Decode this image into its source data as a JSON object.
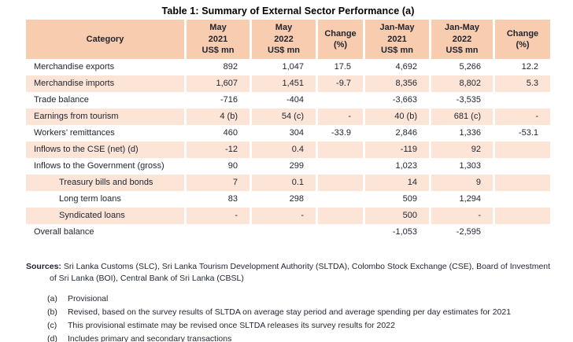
{
  "title": "Table 1: Summary of External Sector Performance (a)",
  "colors": {
    "header_bg": "#F8CCAE",
    "row_shaded_bg": "#FCE5D7",
    "text": "#1F2430"
  },
  "table": {
    "columns": [
      "Category",
      "May\n2021\nUS$ mn",
      "May\n2022\nUS$ mn",
      "Change\n(%)",
      "Jan-May\n2021\nUS$ mn",
      "Jan-May\n2022\nUS$ mn",
      "Change\n(%)"
    ],
    "rows": [
      {
        "category": "Merchandise exports",
        "indent": false,
        "shaded": false,
        "values": [
          "892",
          "1,047",
          "17.5",
          "4,692",
          "5,266",
          "12.2"
        ]
      },
      {
        "category": "Merchandise imports",
        "indent": false,
        "shaded": true,
        "values": [
          "1,607",
          "1,451",
          "-9.7",
          "8,356",
          "8,802",
          "5.3"
        ]
      },
      {
        "category": "Trade balance",
        "indent": false,
        "shaded": false,
        "values": [
          "-716",
          "-404",
          "",
          "-3,663",
          "-3,535",
          ""
        ]
      },
      {
        "category": "Earnings from tourism",
        "indent": false,
        "shaded": true,
        "values": [
          "4 (b)",
          "54 (c)",
          "-",
          "40 (b)",
          "681 (c)",
          "-"
        ]
      },
      {
        "category": "Workers’ remittances",
        "indent": false,
        "shaded": false,
        "values": [
          "460",
          "304",
          "-33.9",
          "2,846",
          "1,336",
          "-53.1"
        ]
      },
      {
        "category": "Inflows to the CSE (net) (d)",
        "indent": false,
        "shaded": true,
        "values": [
          "-12",
          "0.4",
          "",
          "-119",
          "92",
          ""
        ]
      },
      {
        "category": "Inflows to the Government (gross)",
        "indent": false,
        "shaded": false,
        "values": [
          "90",
          "299",
          "",
          "1,023",
          "1,303",
          ""
        ]
      },
      {
        "category": "Treasury bills and bonds",
        "indent": true,
        "shaded": true,
        "values": [
          "7",
          "0.1",
          "",
          "14",
          "9",
          ""
        ]
      },
      {
        "category": "Long term loans",
        "indent": true,
        "shaded": false,
        "values": [
          "83",
          "298",
          "",
          "509",
          "1,294",
          ""
        ]
      },
      {
        "category": "Syndicated loans",
        "indent": true,
        "shaded": true,
        "values": [
          "-",
          "-",
          "",
          "500",
          "-",
          ""
        ]
      },
      {
        "category": "Overall balance",
        "indent": false,
        "shaded": false,
        "values": [
          "",
          "",
          "",
          "-1,053",
          "-2,595",
          ""
        ]
      }
    ]
  },
  "footer": {
    "sources_label": "Sources:",
    "sources_text": " Sri Lanka Customs (SLC), Sri Lanka Tourism Development Authority (SLTDA), Colombo Stock Exchange (CSE), Board of Investment of Sri Lanka (BOI), Central Bank of Sri Lanka (CBSL)",
    "notes": [
      {
        "label": "(a)",
        "text": "Provisional"
      },
      {
        "label": "(b)",
        "text": "Revised, based on the survey results of SLTDA on average stay period and average spending per day estimates for 2021"
      },
      {
        "label": "(c)",
        "text": "This provisional estimate may be revised once SLTDA releases its survey results for 2022"
      },
      {
        "label": "(d)",
        "text": "Includes primary and secondary transactions"
      }
    ]
  }
}
